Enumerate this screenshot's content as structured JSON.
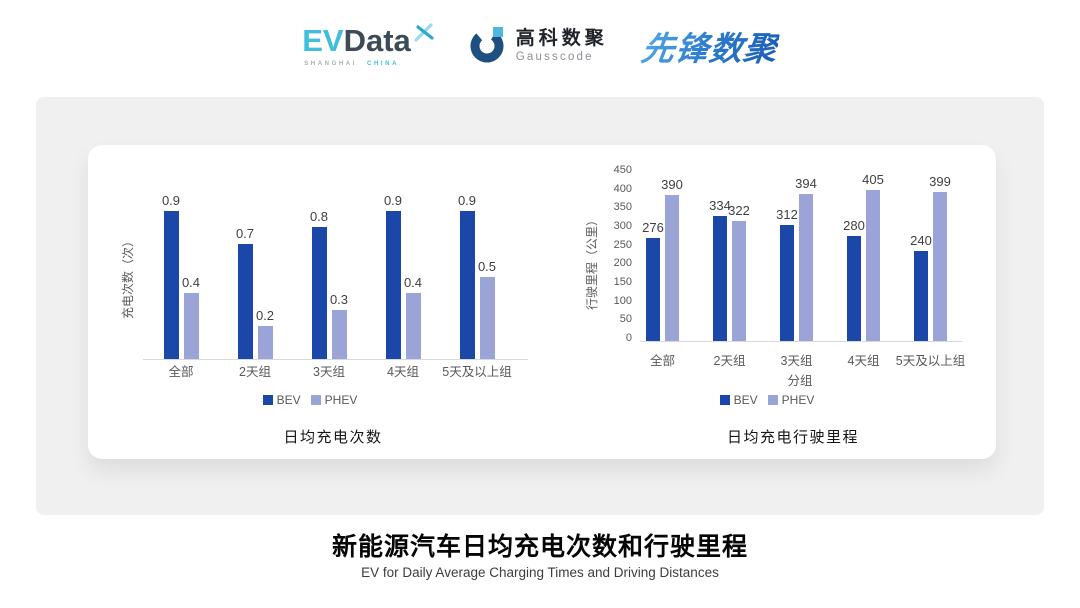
{
  "header": {
    "evdata_logo": {
      "ev": "EV",
      "data": "Data",
      "sub_left": "SHANGHAI",
      "sub_right": "CHINA"
    },
    "gausscode_logo": {
      "cn": "高科数聚",
      "en": "Gausscode"
    },
    "pioneer_logo": {
      "text": "先锋数聚"
    }
  },
  "colors": {
    "bev": "#1a47a8",
    "phev": "#9aa4d6",
    "axis_line": "#d9d9d9",
    "evdata_blue": "#41bede",
    "evdata_dark": "#3d4a57",
    "gauss_navy": "#1d4f80",
    "gauss_cyan": "#4cb9dc",
    "pioneer_blue": "#2f7fd0"
  },
  "chart_data": [
    {
      "type": "bar",
      "title": "日均充电次数",
      "categories": [
        "全部",
        "2天组",
        "3天组",
        "4天组",
        "5天及以上组"
      ],
      "series": [
        {
          "name": "BEV",
          "values": [
            0.9,
            0.7,
            0.8,
            0.9,
            0.9
          ]
        },
        {
          "name": "PHEV",
          "values": [
            0.4,
            0.2,
            0.3,
            0.4,
            0.5
          ]
        }
      ],
      "xlabel": "",
      "ylabel": "充电次数（次）",
      "ylim": [
        0,
        1
      ],
      "yticks": null,
      "grid": false,
      "legend_position": "bottom",
      "colors": {
        "BEV": "#1a47a8",
        "PHEV": "#9aa4d6"
      }
    },
    {
      "type": "bar",
      "title": "日均充电行驶里程",
      "categories": [
        "全部",
        "2天组",
        "3天组",
        "4天组",
        "5天及以上组"
      ],
      "series": [
        {
          "name": "BEV",
          "values": [
            276,
            334,
            312,
            280,
            240
          ]
        },
        {
          "name": "PHEV",
          "values": [
            390,
            322,
            394,
            405,
            399
          ]
        }
      ],
      "xlabel": "分组",
      "ylabel": "行驶里程（公里）",
      "ylim": [
        0,
        450
      ],
      "yticks": [
        0,
        50,
        100,
        150,
        200,
        250,
        300,
        350,
        400,
        450
      ],
      "grid": false,
      "legend_position": "bottom",
      "colors": {
        "BEV": "#1a47a8",
        "PHEV": "#9aa4d6"
      }
    }
  ],
  "footer": {
    "title": "新能源汽车日均充电次数和行驶里程",
    "subtitle": "EV for Daily Average Charging Times and Driving Distances"
  }
}
